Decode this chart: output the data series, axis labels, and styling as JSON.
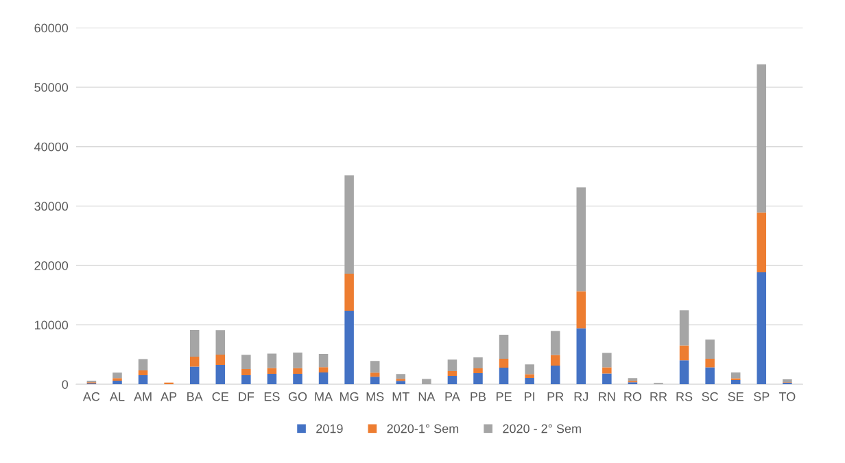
{
  "chart_data": {
    "type": "bar",
    "stacked": true,
    "categories": [
      "AC",
      "AL",
      "AM",
      "AP",
      "BA",
      "CE",
      "DF",
      "ES",
      "GO",
      "MA",
      "MG",
      "MS",
      "MT",
      "NA",
      "PA",
      "PB",
      "PE",
      "PI",
      "PR",
      "RJ",
      "RN",
      "RO",
      "RR",
      "RS",
      "SC",
      "SE",
      "SP",
      "TO"
    ],
    "series": [
      {
        "name": "2019",
        "color": "#4472c4",
        "values": [
          150,
          610,
          1540,
          null,
          2970,
          3270,
          1540,
          1770,
          1770,
          2000,
          12380,
          1270,
          580,
          0,
          1420,
          1880,
          2800,
          1070,
          3150,
          9430,
          1810,
          350,
          0,
          4040,
          2850,
          730,
          18850,
          270
        ]
      },
      {
        "name": "2020-1° Sem",
        "color": "#ed7d31",
        "values": [
          200,
          430,
          800,
          300,
          1680,
          1730,
          1030,
          960,
          930,
          890,
          6240,
          690,
          340,
          0,
          810,
          810,
          1500,
          630,
          1780,
          6230,
          1040,
          230,
          0,
          2500,
          1450,
          270,
          10080,
          80
        ]
      },
      {
        "name": "2020 - 2° Sem",
        "color": "#a5a5a5",
        "values": [
          260,
          920,
          1900,
          null,
          4500,
          4120,
          2390,
          2430,
          2650,
          2230,
          16570,
          1960,
          810,
          890,
          1920,
          1850,
          4040,
          1650,
          4040,
          17460,
          2420,
          460,
          230,
          5920,
          3240,
          1000,
          24920,
          490
        ]
      }
    ],
    "ylim": [
      0,
      60000
    ],
    "yticks": [
      0,
      10000,
      20000,
      30000,
      40000,
      50000,
      60000
    ],
    "grid": "y",
    "legend": "bottom"
  }
}
